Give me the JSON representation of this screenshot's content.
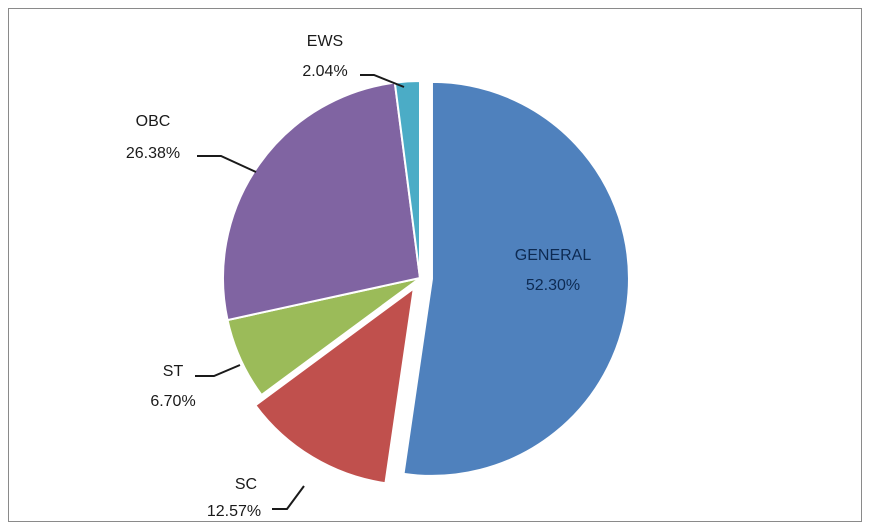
{
  "chart_data": {
    "type": "pie",
    "title": "",
    "slices": [
      {
        "label": "GENERAL",
        "value": 52.3,
        "display": "52.30%",
        "color": "#4f81bd",
        "exploded": true,
        "label_inside": true
      },
      {
        "label": "SC",
        "value": 12.57,
        "display": "12.57%",
        "color": "#c0504d",
        "exploded": true,
        "label_inside": false
      },
      {
        "label": "ST",
        "value": 6.7,
        "display": "6.70%",
        "color": "#9bbb59",
        "exploded": false,
        "label_inside": false
      },
      {
        "label": "OBC",
        "value": 26.38,
        "display": "26.38%",
        "color": "#8064a2",
        "exploded": false,
        "label_inside": false
      },
      {
        "label": "EWS",
        "value": 2.04,
        "display": "2.04%",
        "color": "#4bacc6",
        "exploded": false,
        "label_inside": false
      }
    ]
  }
}
